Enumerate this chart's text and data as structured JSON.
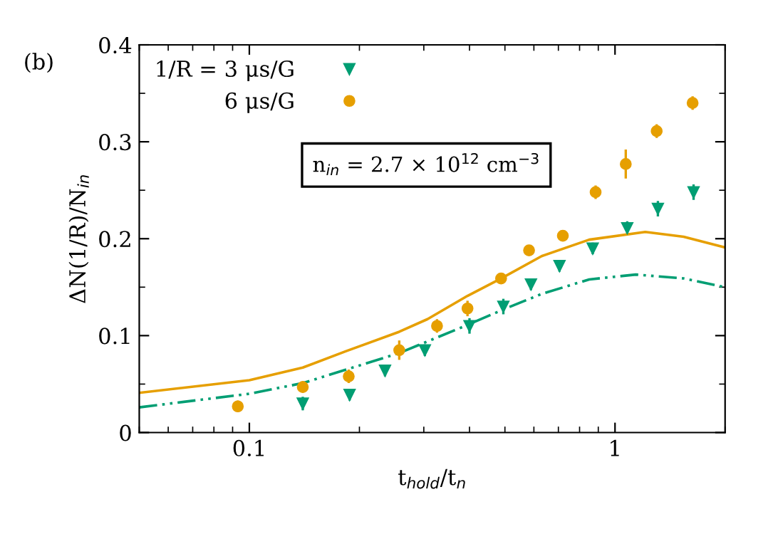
{
  "chart_data": {
    "type": "scatter",
    "xlabel": "t$_{hold}$/t$_{n}$",
    "ylabel": "ΔN(1/R)/N$_{in}$",
    "annotations": [
      "(b)",
      "n$_{in}$ = 2.7 × 10$^{12}$ cm$^{−3}$"
    ],
    "log": "x",
    "xlim": [
      0.05,
      2
    ],
    "xticks": [
      0.1,
      1
    ],
    "ylim": [
      0,
      0.4
    ],
    "yticks": [
      0,
      0.1,
      0.2,
      0.3,
      0.4
    ],
    "grid": false,
    "legend": "top left",
    "series": [
      {
        "name": "1/R = 3 μs/G",
        "color": "#009e73",
        "marker": "triangle",
        "x": [
          0.14,
          0.188,
          0.235,
          0.302,
          0.4,
          0.495,
          0.589,
          0.705,
          0.869,
          1.08,
          1.31,
          1.64
        ],
        "values": [
          0.03,
          0.039,
          0.064,
          0.085,
          0.11,
          0.13,
          0.153,
          0.172,
          0.19,
          0.211,
          0.231,
          0.248
        ],
        "errors": [
          0.007,
          0.006,
          0.006,
          0.006,
          0.008,
          0.008,
          0.006,
          0.006,
          0.006,
          0.007,
          0.008,
          0.008
        ]
      },
      {
        "name": "6 μs/G",
        "color": "#e69f00",
        "marker": "circle",
        "x": [
          0.093,
          0.14,
          0.187,
          0.257,
          0.326,
          0.395,
          0.488,
          0.582,
          0.72,
          0.885,
          1.07,
          1.3,
          1.63
        ],
        "values": [
          0.027,
          0.047,
          0.058,
          0.085,
          0.11,
          0.128,
          0.159,
          0.188,
          0.203,
          0.248,
          0.277,
          0.311,
          0.34
        ],
        "errors": [
          0.006,
          0.006,
          0.007,
          0.01,
          0.007,
          0.008,
          0.004,
          0.004,
          0.004,
          0.007,
          0.015,
          0.007,
          0.007
        ]
      },
      {
        "type": "line",
        "color": "#e69f00",
        "line_style": "solid",
        "x": [
          0.05,
          0.1,
          0.14,
          0.184,
          0.257,
          0.307,
          0.395,
          0.488,
          0.63,
          0.85,
          1.21,
          1.54,
          2
        ],
        "values": [
          0.041,
          0.054,
          0.067,
          0.084,
          0.104,
          0.117,
          0.141,
          0.159,
          0.182,
          0.199,
          0.207,
          0.202,
          0.191
        ]
      },
      {
        "type": "line",
        "color": "#009e73",
        "line_style": "dashed",
        "x": [
          0.05,
          0.1,
          0.14,
          0.257,
          0.395,
          0.488,
          0.63,
          0.85,
          1.14,
          1.54,
          2
        ],
        "values": [
          0.026,
          0.04,
          0.051,
          0.082,
          0.111,
          0.126,
          0.143,
          0.158,
          0.163,
          0.159,
          0.15
        ]
      }
    ]
  }
}
